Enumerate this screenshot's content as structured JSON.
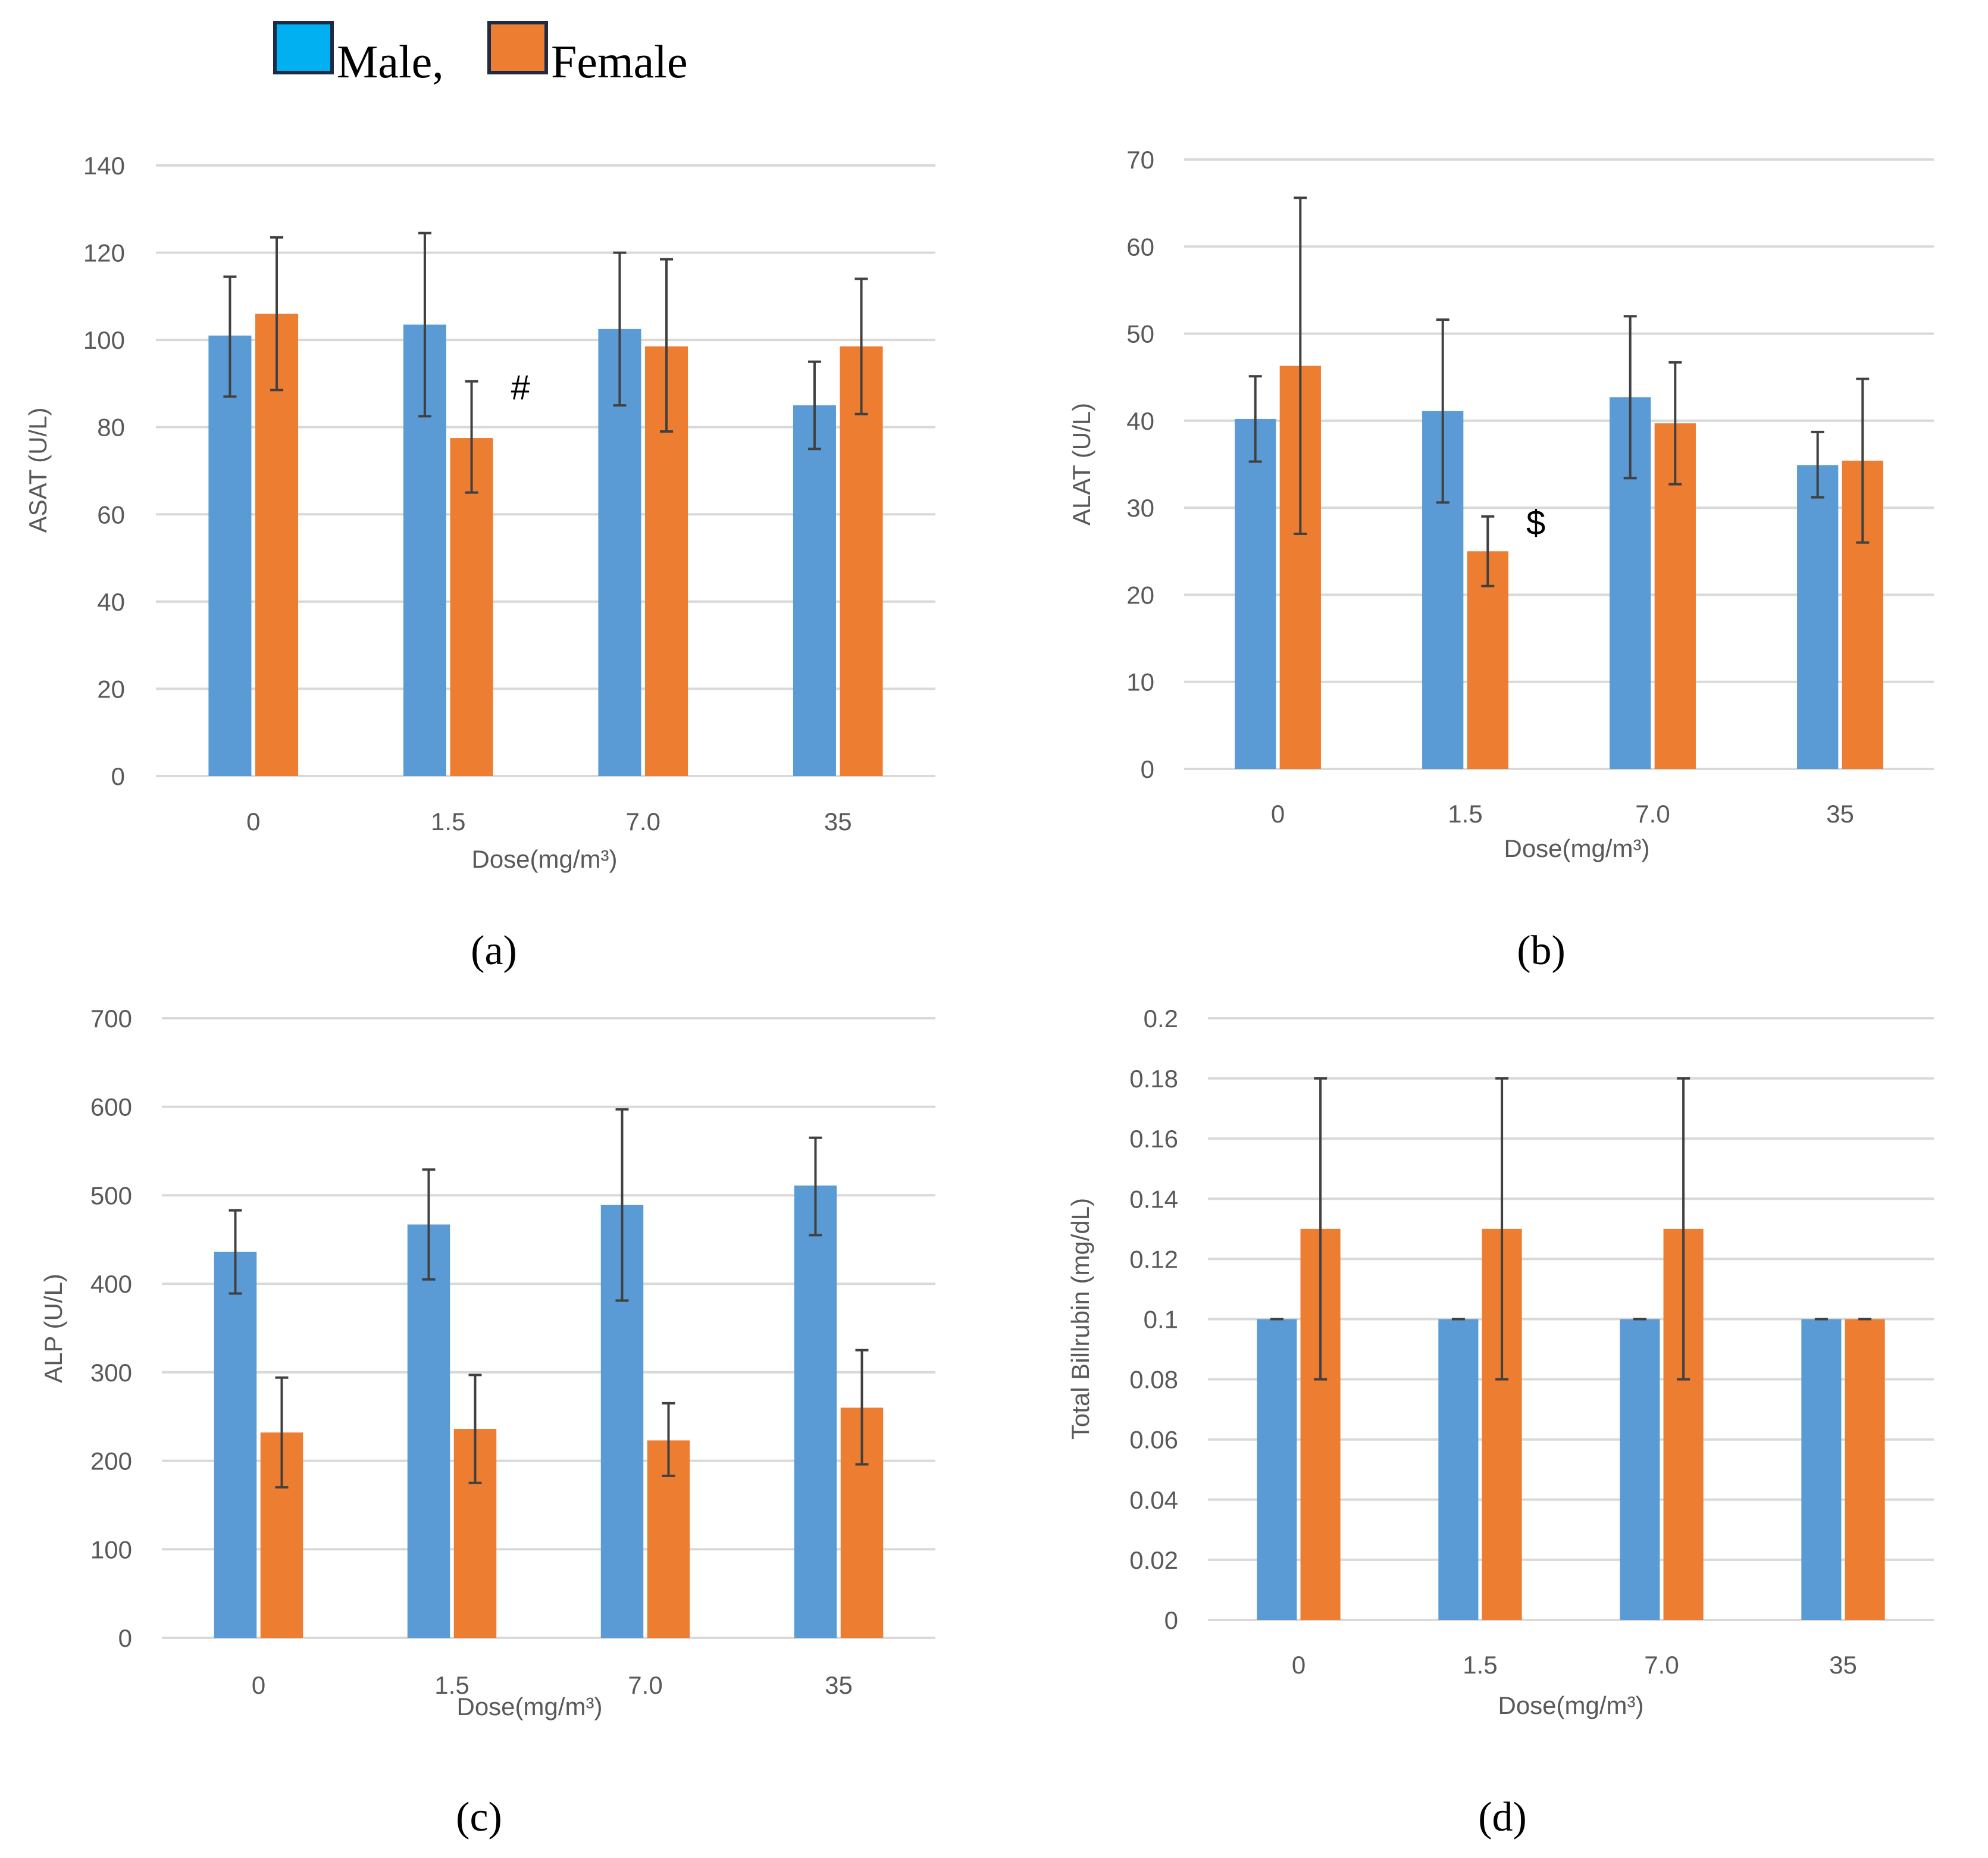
{
  "legend": {
    "male_label": "Male,",
    "female_label": "Female"
  },
  "colors": {
    "male": "#5b9bd5",
    "female": "#ed7d31"
  },
  "chart_data": [
    {
      "type": "bar",
      "panel": "(a)",
      "ylabel": "ASAT (U/L)",
      "xlabel": "Dose(mg/m³)",
      "categories": [
        "0",
        "1.5",
        "7.0",
        "35"
      ],
      "ylim": [
        0,
        140
      ],
      "ytick_step": 20,
      "yticks": [
        "0",
        "20",
        "40",
        "60",
        "80",
        "100",
        "120",
        "140"
      ],
      "series": [
        {
          "name": "Male",
          "values": [
            101,
            103.5,
            102.5,
            85
          ],
          "err_low": [
            87,
            82.5,
            85,
            75
          ],
          "err_high": [
            114.5,
            124.5,
            120,
            95
          ]
        },
        {
          "name": "Female",
          "values": [
            106,
            77.5,
            98.5,
            98.5
          ],
          "err_low": [
            88.5,
            65,
            79,
            83
          ],
          "err_high": [
            123.5,
            90.5,
            118.5,
            114
          ]
        }
      ],
      "annotations": [
        {
          "text": "#",
          "category_index": 1
        }
      ]
    },
    {
      "type": "bar",
      "panel": "(b)",
      "ylabel": "ALAT (U/L)",
      "xlabel": "Dose(mg/m³)",
      "categories": [
        "0",
        "1.5",
        "7.0",
        "35"
      ],
      "ylim": [
        0,
        70
      ],
      "ytick_step": 10,
      "yticks": [
        "0",
        "10",
        "20",
        "30",
        "40",
        "50",
        "60",
        "70"
      ],
      "series": [
        {
          "name": "Male",
          "values": [
            40.2,
            41.1,
            42.7,
            34.9
          ],
          "err_low": [
            35.3,
            30.6,
            33.4,
            31.2
          ],
          "err_high": [
            45.1,
            51.6,
            52,
            38.7
          ]
        },
        {
          "name": "Female",
          "values": [
            46.3,
            25,
            39.7,
            35.4
          ],
          "err_low": [
            27,
            21,
            32.7,
            26
          ],
          "err_high": [
            65.6,
            29,
            46.7,
            44.8
          ]
        }
      ],
      "annotations": [
        {
          "text": "$",
          "category_index": 1
        }
      ]
    },
    {
      "type": "bar",
      "panel": "(c)",
      "ylabel": "ALP (U/L)",
      "xlabel": "Dose(mg/m³)",
      "categories": [
        "0",
        "1.5",
        "7.0",
        "35"
      ],
      "ylim": [
        0,
        700
      ],
      "ytick_step": 100,
      "yticks": [
        "0",
        "100",
        "200",
        "300",
        "400",
        "500",
        "600",
        "700"
      ],
      "series": [
        {
          "name": "Male",
          "values": [
            436,
            467,
            489,
            511
          ],
          "err_low": [
            389,
            405,
            381,
            455
          ],
          "err_high": [
            483,
            529,
            597,
            565
          ]
        },
        {
          "name": "Female",
          "values": [
            232,
            236,
            223,
            260
          ],
          "err_low": [
            170,
            175,
            183,
            196
          ],
          "err_high": [
            294,
            297,
            265,
            325
          ]
        }
      ],
      "annotations": []
    },
    {
      "type": "bar",
      "panel": "(d)",
      "ylabel": "Total Billrubin (mg/dL)",
      "xlabel": "Dose(mg/m³)",
      "categories": [
        "0",
        "1.5",
        "7.0",
        "35"
      ],
      "ylim": [
        0,
        0.2
      ],
      "ytick_step": 0.02,
      "yticks": [
        "0",
        "0.02",
        "0.04",
        "0.06",
        "0.08",
        "0.1",
        "0.12",
        "0.14",
        "0.16",
        "0.18",
        "0.2"
      ],
      "series": [
        {
          "name": "Male",
          "values": [
            0.1,
            0.1,
            0.1,
            0.1
          ],
          "err_low": [
            0.1,
            0.1,
            0.1,
            0.1
          ],
          "err_high": [
            0.1,
            0.1,
            0.1,
            0.1
          ]
        },
        {
          "name": "Female",
          "values": [
            0.13,
            0.13,
            0.13,
            0.1
          ],
          "err_low": [
            0.08,
            0.08,
            0.08,
            0.1
          ],
          "err_high": [
            0.18,
            0.18,
            0.18,
            0.1
          ]
        }
      ],
      "annotations": []
    }
  ]
}
